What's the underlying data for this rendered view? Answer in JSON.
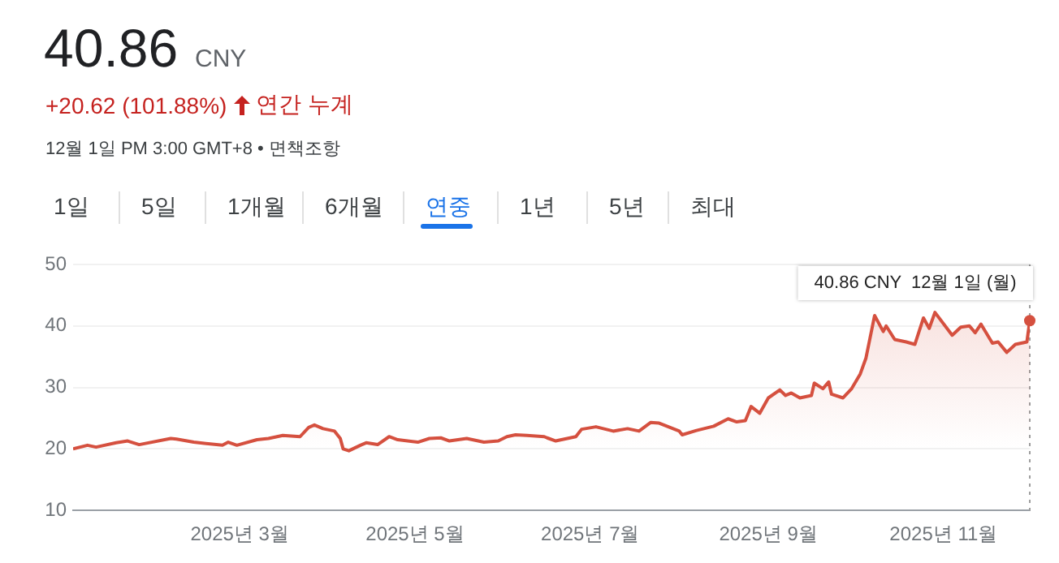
{
  "chart_data": {
    "type": "area",
    "title": "40.86",
    "subtitle": "+20.62 (101.88%)",
    "annotations": [
      "CNY",
      "연간 누계",
      "12월 1일 PM 3:00 GMT+8 • 면책조항",
      "1일",
      "5일",
      "1개월",
      "6개월",
      "연중",
      "1년",
      "5년",
      "최대",
      {
        "text": "40.86 CNY  12월 1일 (월)",
        "x": "2025-12-01",
        "y": 40.86
      }
    ],
    "x": [
      "2025-01-02",
      "2025-01-07",
      "2025-01-10",
      "2025-01-17",
      "2025-01-21",
      "2025-01-25",
      "2025-02-05",
      "2025-02-07",
      "2025-02-13",
      "2025-02-23",
      "2025-02-25",
      "2025-02-28",
      "2025-03-07",
      "2025-03-11",
      "2025-03-16",
      "2025-03-22",
      "2025-03-25",
      "2025-03-27",
      "2025-03-30",
      "2025-04-03",
      "2025-04-05",
      "2025-04-06",
      "2025-04-08",
      "2025-04-12",
      "2025-04-14",
      "2025-04-18",
      "2025-04-22",
      "2025-04-25",
      "2025-05-02",
      "2025-05-06",
      "2025-05-10",
      "2025-05-13",
      "2025-05-19",
      "2025-05-25",
      "2025-05-30",
      "2025-06-02",
      "2025-06-05",
      "2025-06-09",
      "2025-06-15",
      "2025-06-16",
      "2025-06-19",
      "2025-06-26",
      "2025-06-28",
      "2025-07-03",
      "2025-07-09",
      "2025-07-14",
      "2025-07-18",
      "2025-07-22",
      "2025-07-25",
      "2025-08-01",
      "2025-08-02",
      "2025-08-07",
      "2025-08-13",
      "2025-08-18",
      "2025-08-21",
      "2025-08-24",
      "2025-08-26",
      "2025-08-29",
      "2025-09-01",
      "2025-09-05",
      "2025-09-07",
      "2025-09-09",
      "2025-09-12",
      "2025-09-16",
      "2025-09-17",
      "2025-09-20",
      "2025-09-22",
      "2025-09-23",
      "2025-09-27",
      "2025-09-30",
      "2025-10-03",
      "2025-10-05",
      "2025-10-08",
      "2025-10-11",
      "2025-10-12",
      "2025-10-15",
      "2025-10-19",
      "2025-10-22",
      "2025-10-25",
      "2025-10-27",
      "2025-10-29",
      "2025-11-04",
      "2025-11-07",
      "2025-11-10",
      "2025-11-12",
      "2025-11-14",
      "2025-11-18",
      "2025-11-20",
      "2025-11-23",
      "2025-11-26",
      "2025-11-30",
      "2025-12-01"
    ],
    "series": [
      {
        "color": "#d5503f",
        "values": [
          20.0,
          20.6,
          20.3,
          21.0,
          21.3,
          20.7,
          21.7,
          21.6,
          21.1,
          20.6,
          21.1,
          20.6,
          21.5,
          21.7,
          22.2,
          22.0,
          23.5,
          23.9,
          23.3,
          22.9,
          21.7,
          20.0,
          19.7,
          20.6,
          21.0,
          20.7,
          22.0,
          21.5,
          21.1,
          21.7,
          21.8,
          21.3,
          21.7,
          21.1,
          21.3,
          22.0,
          22.3,
          22.2,
          22.0,
          21.8,
          21.3,
          22.0,
          23.2,
          23.6,
          22.9,
          23.3,
          22.9,
          24.3,
          24.2,
          22.9,
          22.3,
          23.0,
          23.7,
          24.9,
          24.4,
          24.6,
          26.9,
          25.8,
          28.3,
          29.6,
          28.7,
          29.1,
          28.3,
          28.7,
          30.7,
          29.8,
          30.9,
          28.9,
          28.3,
          29.8,
          32.2,
          34.8,
          41.7,
          39.1,
          40.0,
          37.8,
          37.4,
          37.0,
          41.3,
          39.6,
          42.2,
          38.5,
          39.8,
          40.0,
          38.9,
          40.3,
          37.2,
          37.4,
          35.7,
          37.0,
          37.4,
          40.86
        ]
      }
    ],
    "xlim": [
      "2025-01-02",
      "2025-12-01"
    ],
    "xticks": [
      {
        "value": "2025-03-01",
        "label": "2025년 3월"
      },
      {
        "value": "2025-05-01",
        "label": "2025년 5월"
      },
      {
        "value": "2025-07-01",
        "label": "2025년 7월"
      },
      {
        "value": "2025-09-01",
        "label": "2025년 9월"
      },
      {
        "value": "2025-11-01",
        "label": "2025년 11월"
      }
    ],
    "ylim": [
      10,
      50
    ],
    "yticks": [
      10,
      20,
      30,
      40,
      50
    ],
    "grid": "y",
    "legend": false,
    "marker": "none",
    "line_style": "solid",
    "ref_lines": [
      {
        "axis": "x",
        "value": "2025-12-01",
        "color": "#9e9e9e",
        "line_style": "dotted"
      }
    ]
  }
}
